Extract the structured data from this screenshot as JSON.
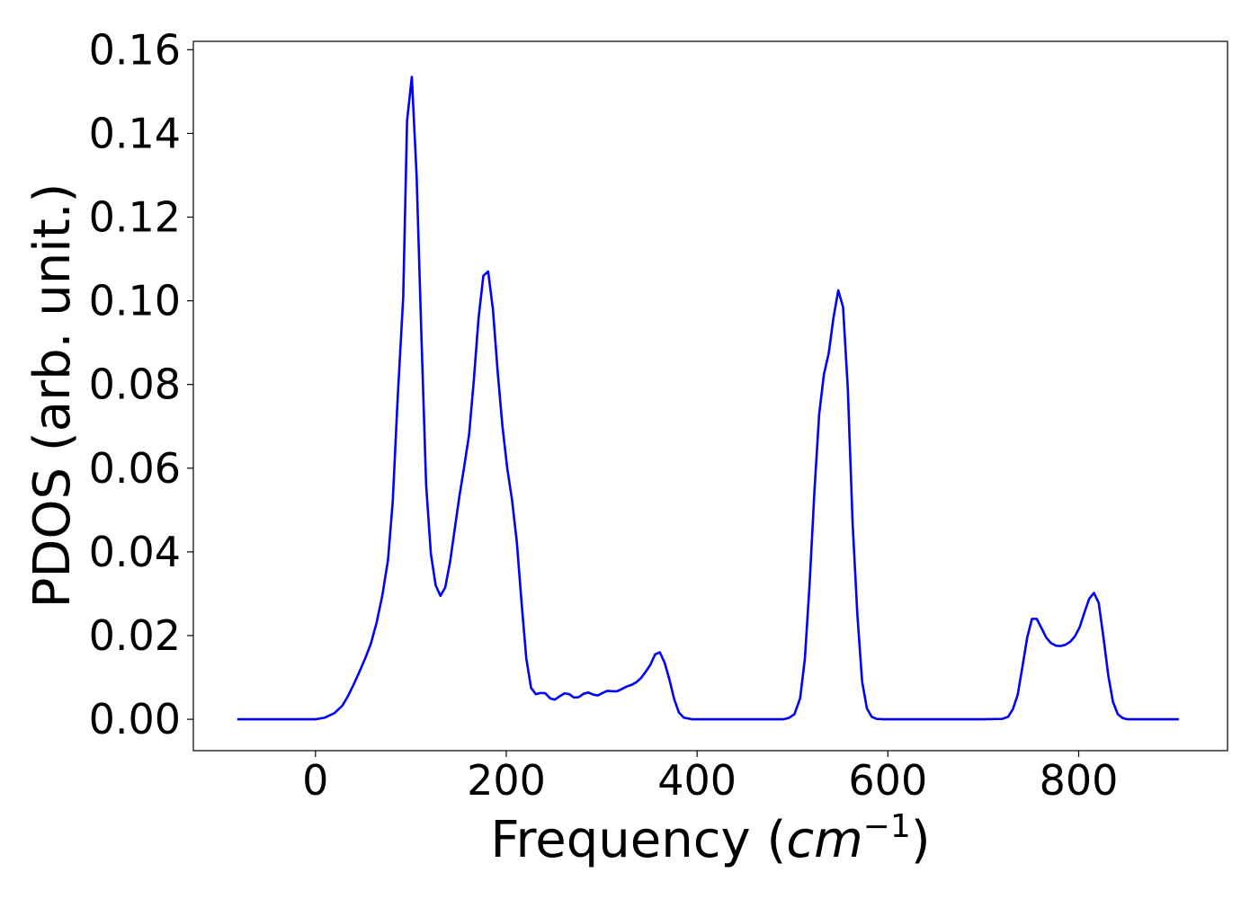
{
  "chart_data": {
    "type": "line",
    "title": "",
    "xlabel_main": "Frequency (",
    "xlabel_unit": "cm",
    "xlabel_exp": "−1",
    "xlabel_close": ")",
    "ylabel": "PDOS (arb. unit.)",
    "xlim": [
      -128,
      956
    ],
    "ylim": [
      -0.0075,
      0.162
    ],
    "x_ticks": [
      0,
      200,
      400,
      600,
      800
    ],
    "x_tick_labels": [
      "0",
      "200",
      "400",
      "600",
      "800"
    ],
    "y_ticks": [
      0.0,
      0.02,
      0.04,
      0.06,
      0.08,
      0.1,
      0.12,
      0.14,
      0.16
    ],
    "y_tick_labels": [
      "0.00",
      "0.02",
      "0.04",
      "0.06",
      "0.08",
      "0.10",
      "0.12",
      "0.14",
      "0.16"
    ],
    "grid": false,
    "legend": "none",
    "series": [
      {
        "color": "#0000ff",
        "x": [
          -82,
          0,
          10,
          20,
          28,
          34,
          40,
          46,
          52,
          58,
          64,
          70,
          76,
          81,
          86,
          92,
          96,
          101,
          106,
          111,
          116,
          121,
          126,
          131,
          136,
          141,
          146,
          151,
          156,
          161,
          166,
          171,
          176,
          181,
          186,
          191,
          196,
          201,
          206,
          211,
          216,
          221,
          226,
          231,
          236,
          241,
          246,
          251,
          256,
          261,
          266,
          271,
          276,
          281,
          286,
          291,
          296,
          301,
          306,
          311,
          316,
          321,
          326,
          331,
          336,
          341,
          346,
          351,
          356,
          361,
          366,
          371,
          376,
          381,
          386,
          395,
          450,
          490,
          496,
          502,
          508,
          513,
          518,
          523,
          528,
          533,
          538,
          543,
          548,
          553,
          558,
          563,
          568,
          573,
          578,
          583,
          588,
          595,
          700,
          720,
          726,
          731,
          736,
          741,
          746,
          751,
          756,
          761,
          766,
          771,
          776,
          781,
          786,
          791,
          796,
          801,
          806,
          811,
          816,
          821,
          826,
          831,
          836,
          841,
          846,
          851,
          856,
          905
        ],
        "y": [
          0.0,
          0.0,
          0.0004,
          0.0015,
          0.0032,
          0.0055,
          0.0083,
          0.0113,
          0.0145,
          0.018,
          0.023,
          0.0295,
          0.038,
          0.052,
          0.076,
          0.101,
          0.143,
          0.1535,
          0.13,
          0.092,
          0.056,
          0.0395,
          0.032,
          0.0295,
          0.0315,
          0.0375,
          0.0455,
          0.0535,
          0.0605,
          0.068,
          0.081,
          0.096,
          0.106,
          0.107,
          0.098,
          0.083,
          0.07,
          0.06,
          0.0525,
          0.0425,
          0.028,
          0.0145,
          0.0075,
          0.006,
          0.0063,
          0.0062,
          0.005,
          0.0047,
          0.0055,
          0.0062,
          0.006,
          0.0052,
          0.0053,
          0.0061,
          0.0064,
          0.0059,
          0.0057,
          0.0063,
          0.0068,
          0.0067,
          0.0067,
          0.0072,
          0.0078,
          0.0082,
          0.0088,
          0.0098,
          0.0113,
          0.013,
          0.0155,
          0.016,
          0.0135,
          0.0095,
          0.0048,
          0.0016,
          0.0004,
          0.0,
          0.0,
          0.0,
          0.0003,
          0.0012,
          0.005,
          0.0145,
          0.0325,
          0.0545,
          0.073,
          0.0825,
          0.0875,
          0.096,
          0.1025,
          0.0985,
          0.079,
          0.047,
          0.025,
          0.009,
          0.0026,
          0.0006,
          0.0001,
          0.0,
          0.0,
          0.0001,
          0.0006,
          0.0024,
          0.0058,
          0.0125,
          0.0195,
          0.024,
          0.024,
          0.0218,
          0.0195,
          0.0182,
          0.0176,
          0.0175,
          0.0178,
          0.0185,
          0.0198,
          0.022,
          0.0255,
          0.0288,
          0.0302,
          0.0278,
          0.0195,
          0.0105,
          0.0041,
          0.0012,
          0.0003,
          0.0,
          0.0,
          0.0
        ]
      }
    ]
  }
}
